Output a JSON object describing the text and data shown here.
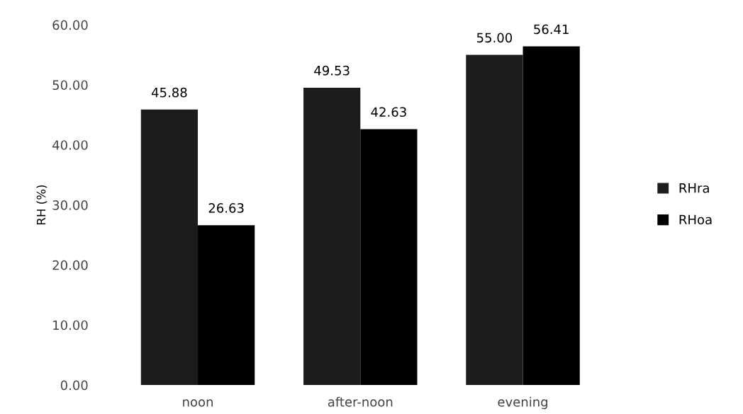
{
  "chart_data": {
    "type": "bar",
    "ylabel": "RH (%)",
    "categories": [
      "noon",
      "after-noon",
      "evening"
    ],
    "series": [
      {
        "name": "RHra",
        "color": "#1c1c1c",
        "values": [
          45.88,
          49.53,
          55.0
        ],
        "value_labels": [
          "45.88",
          "49.53",
          "55.00"
        ]
      },
      {
        "name": "RHoa",
        "color": "#000000",
        "values": [
          26.63,
          42.63,
          56.41
        ],
        "value_labels": [
          "26.63",
          "42.63",
          "56.41"
        ]
      }
    ],
    "ylim": [
      0,
      60
    ],
    "yticks": [
      {
        "value": 0,
        "label": "0.00"
      },
      {
        "value": 10,
        "label": "10.00"
      },
      {
        "value": 20,
        "label": "20.00"
      },
      {
        "value": 30,
        "label": "30.00"
      },
      {
        "value": 40,
        "label": "40.00"
      },
      {
        "value": 50,
        "label": "50.00"
      },
      {
        "value": 60,
        "label": "60.00"
      }
    ],
    "grid": false,
    "legend": "right"
  }
}
